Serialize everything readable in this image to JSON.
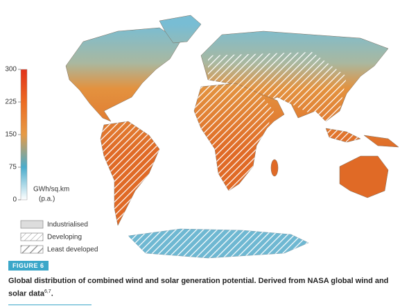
{
  "colorbar": {
    "range": [
      0,
      300
    ],
    "ticks": [
      0,
      75,
      150,
      225,
      300
    ],
    "colors": [
      "#ffffff",
      "#4aaccc",
      "#e69a45",
      "#ec6b22",
      "#e2321a"
    ],
    "unit_label": [
      "GWh/sq.km",
      "(p.a.)"
    ]
  },
  "legend": {
    "items": [
      "Industrialised",
      "Developing",
      "Least developed"
    ]
  },
  "figure_label": "FIGURE 6",
  "caption": {
    "text": "Global distribution of combined wind and solar generation potential. Derived from NASA global wind and solar data",
    "superscript": "6,7",
    "end": "."
  }
}
